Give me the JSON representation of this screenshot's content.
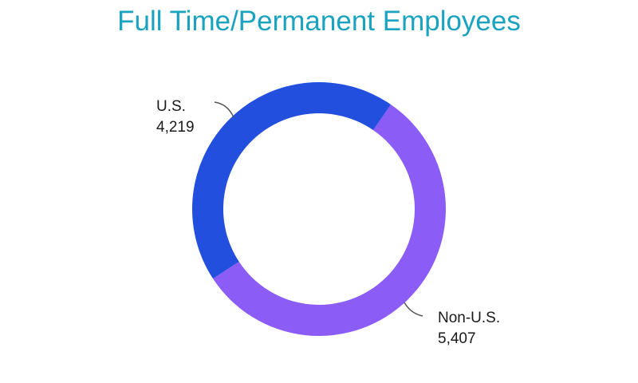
{
  "chart_data": {
    "type": "pie",
    "subtype": "donut",
    "title": "Full Time/Permanent Employees",
    "categories": [
      "U.S.",
      "Non-U.S."
    ],
    "values": [
      4219,
      5407
    ],
    "value_labels": [
      "4,219",
      "5,407"
    ],
    "colors": [
      "#234fde",
      "#8b5cf6"
    ],
    "title_color": "#1aa3c0",
    "legend": "none",
    "labels": "outside-with-leader-lines"
  }
}
